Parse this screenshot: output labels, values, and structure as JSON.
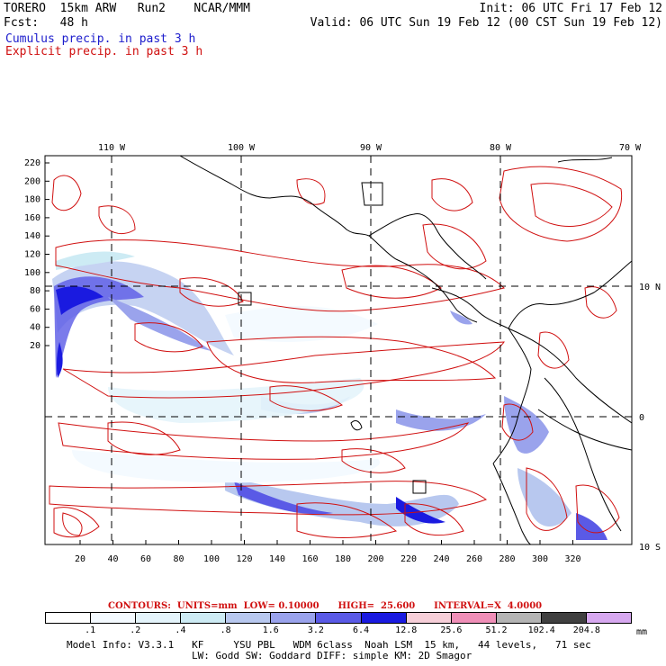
{
  "header": {
    "line1_left": "TORERO  15km ARW   Run2    NCAR/MMM",
    "line1_right": "Init: 06 UTC Fri 17 Feb 12",
    "line2_left": "Fcst:   48 h",
    "line2_right": "Valid: 06 UTC Sun 19 Feb 12 (00 CST Sun 19 Feb 12)",
    "line3": "Cumulus precip. in past 3 h",
    "line4": "Explicit precip. in past 3 h"
  },
  "colors": {
    "cumulus": "#1c1ccc",
    "explicit": "#d01010",
    "coast": "#000000"
  },
  "map": {
    "lon_labels": [
      "110 W",
      "100 W",
      "90 W",
      "80 W",
      "70 W"
    ],
    "lat_labels": [
      "10 N",
      "0",
      "10 S"
    ],
    "y_ticks": [
      "220",
      "200",
      "180",
      "160",
      "140",
      "120",
      "100",
      "80",
      "60",
      "40",
      "20"
    ],
    "x_ticks": [
      "20",
      "40",
      "60",
      "80",
      "100",
      "120",
      "140",
      "160",
      "180",
      "200",
      "220",
      "240",
      "260",
      "280",
      "300",
      "320"
    ]
  },
  "legend": {
    "title": "CONTOURS:  UNITS=mm  LOW= 0.10000      HIGH=  25.600      INTERVAL=X  4.0000",
    "values": [
      ".1",
      ".2",
      ".4",
      ".8",
      "1.6",
      "3.2",
      "6.4",
      "12.8",
      "25.6",
      "51.2",
      "102.4",
      "204.8"
    ],
    "unit": "mm",
    "colors": [
      "#ffffff",
      "#f4faff",
      "#e4f4fb",
      "#cdebf4",
      "#b8c8ef",
      "#9aa3ec",
      "#5a5ae6",
      "#1a1ae0",
      "#f7cfd9",
      "#f08fb8",
      "#b4b4b4",
      "#404040",
      "#d7a8f0"
    ]
  },
  "model_info": {
    "line1": "Model Info: V3.3.1   KF     YSU PBL   WDM 6class  Noah LSM  15 km,   44 levels,   71 sec",
    "line2": "LW: Godd SW: Goddard DIFF: simple KM: 2D Smagor"
  }
}
